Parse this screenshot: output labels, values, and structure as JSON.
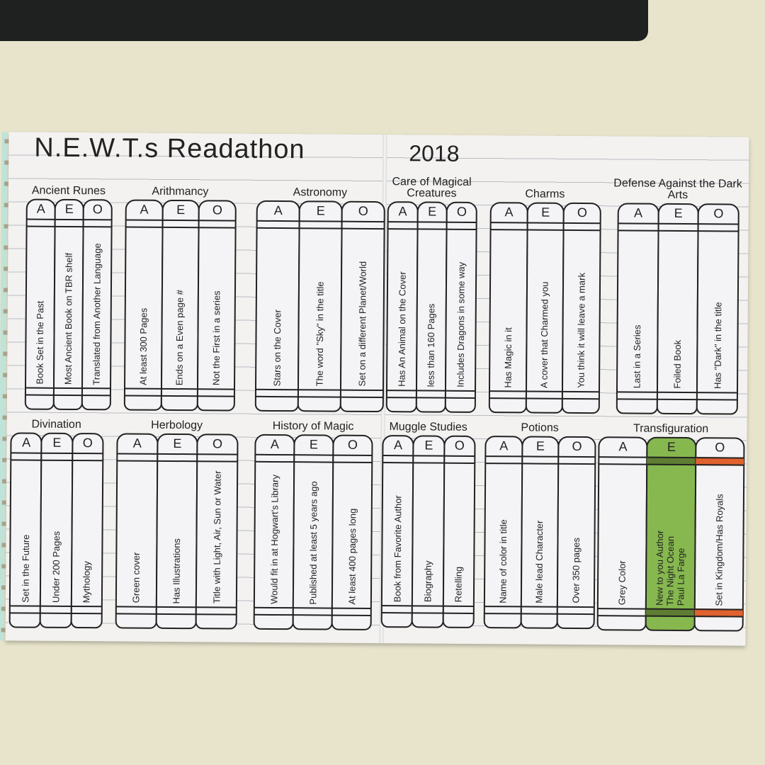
{
  "title": "N.E.W.T.s Readathon",
  "year": "2018",
  "subjects": [
    {
      "name": "Ancient Runes",
      "books": [
        {
          "grade": "A",
          "prompt": "Book Set in the Past"
        },
        {
          "grade": "E",
          "prompt": "Most Ancient Book on TBR shelf"
        },
        {
          "grade": "O",
          "prompt": "Translated from Another Language"
        }
      ]
    },
    {
      "name": "Arithmancy",
      "books": [
        {
          "grade": "A",
          "prompt": "At least 300 Pages"
        },
        {
          "grade": "E",
          "prompt": "Ends on a Even page #"
        },
        {
          "grade": "O",
          "prompt": "Not the First in a series"
        }
      ]
    },
    {
      "name": "Astronomy",
      "books": [
        {
          "grade": "A",
          "prompt": "Stars on the Cover"
        },
        {
          "grade": "E",
          "prompt": "The word \"Sky\" in the title"
        },
        {
          "grade": "O",
          "prompt": "Set on a different Planet/World"
        }
      ]
    },
    {
      "name": "Care of Magical Creatures",
      "books": [
        {
          "grade": "A",
          "prompt": "Has An Animal on the Cover"
        },
        {
          "grade": "E",
          "prompt": "less than 160 Pages"
        },
        {
          "grade": "O",
          "prompt": "Includes Dragons in some way"
        }
      ]
    },
    {
      "name": "Charms",
      "books": [
        {
          "grade": "A",
          "prompt": "Has Magic in it"
        },
        {
          "grade": "E",
          "prompt": "A cover that Charmed you"
        },
        {
          "grade": "O",
          "prompt": "You think it will leave a mark"
        }
      ]
    },
    {
      "name": "Defense Against the Dark Arts",
      "books": [
        {
          "grade": "A",
          "prompt": "Last in a Series"
        },
        {
          "grade": "E",
          "prompt": "Foiled Book"
        },
        {
          "grade": "O",
          "prompt": "Has \"Dark\" in the title"
        }
      ]
    },
    {
      "name": "Divination",
      "books": [
        {
          "grade": "A",
          "prompt": "Set in the Future"
        },
        {
          "grade": "E",
          "prompt": "Under 200 Pages"
        },
        {
          "grade": "O",
          "prompt": "Mythology"
        }
      ]
    },
    {
      "name": "Herbology",
      "books": [
        {
          "grade": "A",
          "prompt": "Green cover"
        },
        {
          "grade": "E",
          "prompt": "Has Illustrations"
        },
        {
          "grade": "O",
          "prompt": "Title with Light, Air, Sun or Water"
        }
      ]
    },
    {
      "name": "History of Magic",
      "books": [
        {
          "grade": "A",
          "prompt": "Would fit in at Hogwart's Library"
        },
        {
          "grade": "E",
          "prompt": "Published at least 5 years ago"
        },
        {
          "grade": "O",
          "prompt": "At least 400 pages long"
        }
      ]
    },
    {
      "name": "Muggle Studies",
      "books": [
        {
          "grade": "A",
          "prompt": "Book from Favorite Author"
        },
        {
          "grade": "E",
          "prompt": "Biography"
        },
        {
          "grade": "O",
          "prompt": "Retelling"
        }
      ]
    },
    {
      "name": "Potions",
      "books": [
        {
          "grade": "A",
          "prompt": "Name of color in title"
        },
        {
          "grade": "E",
          "prompt": "Male lead Character"
        },
        {
          "grade": "O",
          "prompt": "Over 350 pages"
        }
      ]
    },
    {
      "name": "Transfiguration",
      "books": [
        {
          "grade": "A",
          "prompt": "Grey Color"
        },
        {
          "grade": "E",
          "prompt": "New to you Author\nThe Night Ocean\nPaul La Farge",
          "fill": "#86b84f",
          "band": "#5e7d32"
        },
        {
          "grade": "O",
          "prompt": "Set in Kingdom/Has Royals",
          "band": "#e0622f"
        }
      ]
    }
  ]
}
